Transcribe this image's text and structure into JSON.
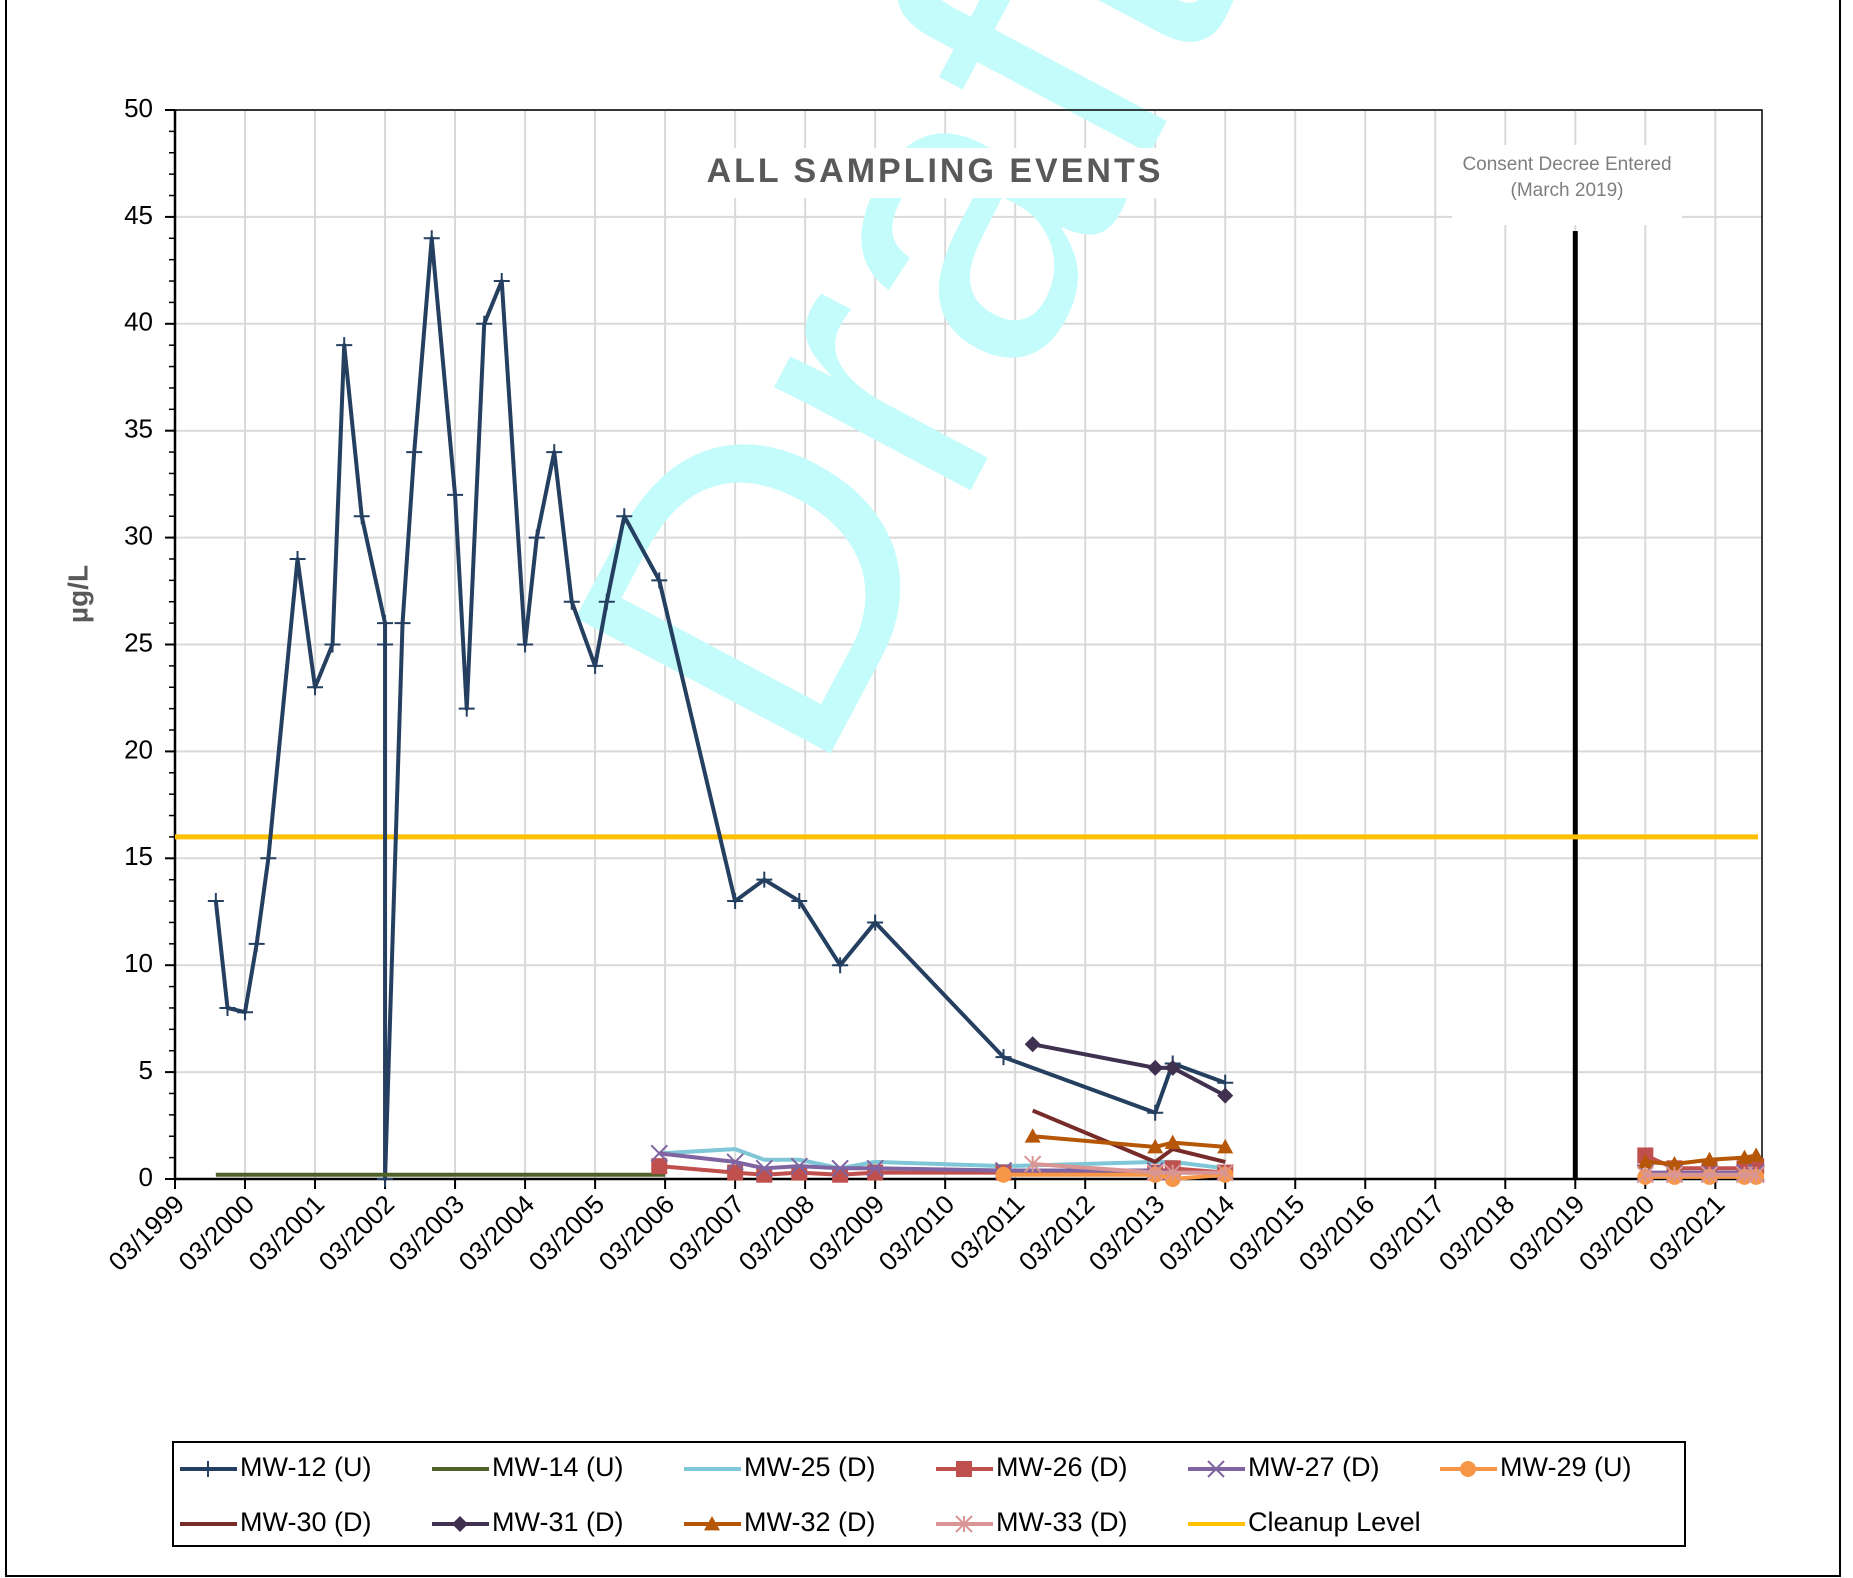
{
  "chart_data": {
    "type": "line",
    "title": "ALL SAMPLING EVENTS",
    "watermark": "Draft",
    "y_label": "µg/L",
    "xlim": [
      "03/1999",
      "11/2021"
    ],
    "xticks": [
      "03/1999",
      "03/2000",
      "03/2001",
      "03/2002",
      "03/2003",
      "03/2004",
      "03/2005",
      "03/2006",
      "03/2007",
      "03/2008",
      "03/2009",
      "03/2010",
      "03/2011",
      "03/2012",
      "03/2013",
      "03/2014",
      "03/2015",
      "03/2016",
      "03/2017",
      "03/2018",
      "03/2019",
      "03/2020",
      "03/2021"
    ],
    "ylim": [
      0,
      50
    ],
    "yticks": [
      0,
      5,
      10,
      15,
      20,
      25,
      30,
      35,
      40,
      45,
      50
    ],
    "grid": true,
    "series": [
      {
        "name": "MW-12 (U)",
        "color": "#243f60",
        "marker": "plus",
        "x": [
          "10/1999",
          "12/1999",
          "03/2000",
          "05/2000",
          "07/2000",
          "12/2000",
          "03/2001",
          "06/2001",
          "08/2001",
          "11/2001",
          "03/2002",
          "03/2002",
          "03/2002",
          "06/2002",
          "08/2002",
          "11/2002",
          "03/2003",
          "05/2003",
          "08/2003",
          "11/2003",
          "03/2004",
          "05/2004",
          "08/2004",
          "11/2004",
          "03/2005",
          "05/2005",
          "08/2005",
          "02/2006",
          "03/2007",
          "08/2007",
          "02/2008",
          "09/2008",
          "03/2009",
          "01/2011",
          "03/2013",
          "06/2013",
          "03/2014"
        ],
        "values": [
          13,
          8,
          7.8,
          11,
          15,
          29,
          23,
          25,
          39,
          31,
          26,
          25,
          0,
          26,
          34,
          44,
          32,
          22,
          40,
          42,
          25,
          30,
          34,
          27,
          24,
          27,
          31,
          28,
          13,
          14,
          13,
          10,
          12,
          5.7,
          3.1,
          5.4,
          4.5
        ]
      },
      {
        "name": "MW-14 (U)",
        "color": "#4f6228",
        "marker": "none",
        "x": [
          "10/1999",
          "03/2002",
          "03/2004",
          "03/2006"
        ],
        "values": [
          0.2,
          0.2,
          0.2,
          0.2
        ]
      },
      {
        "name": "MW-25 (D)",
        "color": "#7fc6d6",
        "marker": "none",
        "x": [
          "02/2006",
          "03/2007",
          "08/2007",
          "02/2008",
          "09/2008",
          "03/2009",
          "01/2011",
          "03/2013",
          "06/2013",
          "03/2014"
        ],
        "values": [
          1.2,
          1.4,
          0.9,
          0.9,
          0.5,
          0.8,
          0.6,
          0.8,
          0.8,
          0.5
        ]
      },
      {
        "name": "MW-26 (D)",
        "color": "#c0504d",
        "marker": "square",
        "x": [
          "02/2006",
          "03/2007",
          "08/2007",
          "02/2008",
          "09/2008",
          "03/2009",
          "01/2011",
          "03/2013",
          "06/2013",
          "03/2014",
          "03/2020",
          "08/2020",
          "02/2021",
          "08/2021",
          "10/2021"
        ],
        "values": [
          0.6,
          0.3,
          0.2,
          0.3,
          0.2,
          0.3,
          0.3,
          0.3,
          0.5,
          0.3,
          1.1,
          0.5,
          0.5,
          0.5,
          0.6
        ]
      },
      {
        "name": "MW-27 (D)",
        "color": "#8064a2",
        "marker": "x",
        "x": [
          "02/2006",
          "03/2007",
          "08/2007",
          "02/2008",
          "09/2008",
          "03/2009",
          "01/2011",
          "03/2013",
          "06/2013",
          "03/2014",
          "03/2020",
          "08/2020",
          "02/2021",
          "08/2021",
          "10/2021"
        ],
        "values": [
          1.2,
          0.8,
          0.5,
          0.6,
          0.5,
          0.5,
          0.4,
          0.4,
          0.3,
          0.3,
          0.3,
          0.3,
          0.3,
          0.3,
          0.3
        ]
      },
      {
        "name": "MW-29 (U)",
        "color": "#f79646",
        "marker": "circle",
        "x": [
          "01/2011",
          "03/2013",
          "06/2013",
          "03/2014",
          "03/2020",
          "08/2020",
          "02/2021",
          "08/2021",
          "10/2021"
        ],
        "values": [
          0.2,
          0.2,
          0,
          0.2,
          0.1,
          0.1,
          0.1,
          0.1,
          0.1
        ]
      },
      {
        "name": "MW-30 (D)",
        "color": "#772c2a",
        "marker": "none",
        "x": [
          "06/2011",
          "03/2013",
          "06/2013",
          "03/2014"
        ],
        "values": [
          3.2,
          0.8,
          1.4,
          0.8
        ]
      },
      {
        "name": "MW-31 (D)",
        "color": "#403151",
        "marker": "diamond",
        "x": [
          "06/2011",
          "03/2013",
          "06/2013",
          "03/2014"
        ],
        "values": [
          6.3,
          5.2,
          5.2,
          3.9
        ]
      },
      {
        "name": "MW-32 (D)",
        "color": "#b65708",
        "marker": "triangle",
        "x": [
          "06/2011",
          "03/2013",
          "06/2013",
          "03/2014",
          "03/2020",
          "08/2020",
          "02/2021",
          "08/2021",
          "10/2021"
        ],
        "values": [
          2.0,
          1.5,
          1.7,
          1.5,
          0.8,
          0.7,
          0.9,
          1.0,
          1.1
        ]
      },
      {
        "name": "MW-33 (D)",
        "color": "#d99594",
        "marker": "asterisk",
        "x": [
          "06/2011",
          "03/2013",
          "06/2013",
          "03/2014",
          "03/2020",
          "08/2020",
          "02/2021",
          "08/2021",
          "10/2021"
        ],
        "values": [
          0.7,
          0.3,
          0.3,
          0.3,
          0.2,
          0.2,
          0.2,
          0.2,
          0.2
        ]
      }
    ],
    "reference_line": {
      "name": "Cleanup Level",
      "value": 16,
      "color": "#ffc000"
    },
    "event_line": {
      "x": "03/2019",
      "label_lines": [
        "Consent Decree Entered",
        "(March 2019)"
      ],
      "color": "#000000"
    }
  }
}
